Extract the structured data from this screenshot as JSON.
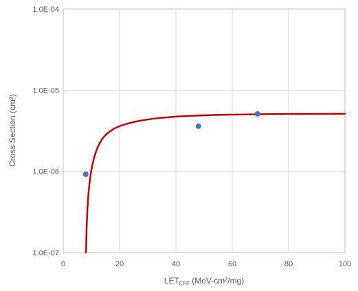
{
  "chart_data": {
    "type": "scatter",
    "title": "",
    "ylabel": "Cross Section (cm²)",
    "xlabel": {
      "base": "LET",
      "subscript": "EFF",
      "suffix": " (MeV-cm²/mg)"
    },
    "xlim": [
      0,
      100
    ],
    "ylim": [
      1e-07,
      0.0001
    ],
    "yscale": "log",
    "grid": true,
    "legend": "none",
    "x_ticks": [
      0,
      20,
      40,
      60,
      80,
      100
    ],
    "x_tick_labels": [
      "0",
      "20",
      "40",
      "60",
      "80",
      "100"
    ],
    "y_ticks": [
      1e-07,
      1e-06,
      1e-05,
      0.0001
    ],
    "y_tick_labels": [
      "1.0E-07",
      "1.0E-06",
      "1.0E-05",
      "1.0E-04"
    ],
    "series": [
      {
        "kind": "points",
        "color": "#4472C4",
        "x": [
          8,
          48,
          69
        ],
        "y": [
          9.2e-07,
          3.6e-06,
          5.1e-06
        ]
      },
      {
        "kind": "fit-curve",
        "color": "#C00000",
        "x": [
          8.1,
          8.3,
          8.6,
          9,
          9.5,
          10,
          11,
          12,
          13,
          14,
          15,
          16,
          18,
          20,
          22,
          25,
          28,
          32,
          36,
          40,
          45,
          50,
          55,
          60,
          70,
          80,
          90,
          100
        ],
        "y": [
          1e-07,
          2e-07,
          3.5e-07,
          5.5e-07,
          8e-07,
          1.05e-06,
          1.5e-06,
          1.9e-06,
          2.25e-06,
          2.55e-06,
          2.8e-06,
          3e-06,
          3.35e-06,
          3.6e-06,
          3.8e-06,
          4.05e-06,
          4.25e-06,
          4.45e-06,
          4.6e-06,
          4.72e-06,
          4.82e-06,
          4.9e-06,
          4.96e-06,
          5e-06,
          5.05e-06,
          5.08e-06,
          5.1e-06,
          5.12e-06
        ]
      }
    ]
  }
}
